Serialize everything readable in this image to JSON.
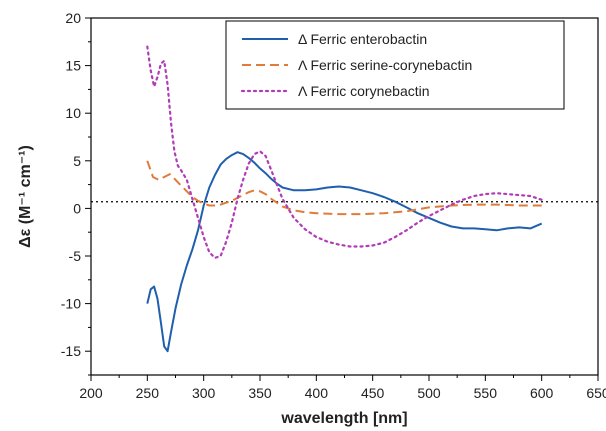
{
  "chart_data": {
    "type": "line",
    "title": "",
    "xlabel": "wavelength [nm]",
    "ylabel": "Δε (M⁻¹ cm⁻¹)",
    "xlim": [
      200,
      650
    ],
    "ylim": [
      -17.5,
      20
    ],
    "xticks": [
      200,
      250,
      300,
      350,
      400,
      450,
      500,
      550,
      600,
      650
    ],
    "yticks": [
      -15,
      -10,
      -5,
      0,
      5,
      10,
      15,
      20
    ],
    "reference_line": 0.7,
    "legend_position": "top-right",
    "grid": false,
    "series": [
      {
        "name": "Δ Ferric enterobactin",
        "color": "#1f5fad",
        "style": "solid",
        "x": [
          250,
          253,
          256,
          259,
          262,
          265,
          268,
          271,
          275,
          280,
          285,
          290,
          295,
          300,
          305,
          310,
          315,
          320,
          325,
          330,
          335,
          340,
          345,
          350,
          355,
          360,
          365,
          370,
          380,
          390,
          400,
          410,
          420,
          430,
          440,
          450,
          460,
          470,
          480,
          490,
          500,
          510,
          520,
          530,
          540,
          550,
          560,
          570,
          580,
          590,
          600
        ],
        "y": [
          -10.0,
          -8.5,
          -8.2,
          -9.5,
          -12.0,
          -14.5,
          -15.0,
          -13.0,
          -10.5,
          -8.0,
          -6.0,
          -4.3,
          -2.3,
          0.3,
          2.2,
          3.5,
          4.6,
          5.2,
          5.6,
          5.9,
          5.7,
          5.3,
          4.8,
          4.2,
          3.7,
          3.1,
          2.6,
          2.2,
          1.9,
          1.9,
          2.0,
          2.2,
          2.3,
          2.2,
          1.9,
          1.6,
          1.2,
          0.7,
          0.1,
          -0.5,
          -1.0,
          -1.5,
          -1.9,
          -2.1,
          -2.1,
          -2.2,
          -2.3,
          -2.1,
          -2.0,
          -2.1,
          -1.6
        ]
      },
      {
        "name": "Λ Ferric serine-corynebactin",
        "color": "#e07b39",
        "style": "dashed",
        "x": [
          250,
          255,
          260,
          265,
          270,
          275,
          280,
          285,
          290,
          295,
          300,
          305,
          310,
          315,
          320,
          325,
          330,
          335,
          340,
          345,
          350,
          355,
          360,
          365,
          370,
          380,
          390,
          400,
          420,
          440,
          460,
          480,
          500,
          520,
          540,
          560,
          580,
          600
        ],
        "y": [
          5.0,
          3.3,
          3.0,
          3.3,
          3.6,
          3.0,
          2.4,
          1.8,
          1.2,
          0.8,
          0.5,
          0.3,
          0.3,
          0.4,
          0.6,
          0.8,
          1.1,
          1.4,
          1.7,
          1.9,
          1.8,
          1.5,
          1.0,
          0.6,
          0.2,
          -0.2,
          -0.4,
          -0.5,
          -0.6,
          -0.6,
          -0.5,
          -0.3,
          0.1,
          0.3,
          0.4,
          0.4,
          0.3,
          0.3
        ]
      },
      {
        "name": "Λ Ferric corynebactin",
        "color": "#b23cb8",
        "style": "dotted",
        "x": [
          250,
          253,
          256,
          259,
          262,
          265,
          268,
          271,
          274,
          277,
          280,
          285,
          290,
          295,
          300,
          305,
          310,
          315,
          320,
          325,
          330,
          335,
          340,
          345,
          350,
          355,
          360,
          365,
          370,
          380,
          390,
          400,
          410,
          420,
          430,
          440,
          450,
          460,
          470,
          480,
          490,
          500,
          510,
          520,
          530,
          540,
          550,
          560,
          570,
          580,
          590,
          600
        ],
        "y": [
          17.0,
          14.5,
          12.8,
          13.8,
          15.2,
          15.5,
          13.0,
          9.0,
          6.0,
          4.5,
          4.0,
          3.0,
          1.0,
          -1.0,
          -3.0,
          -4.6,
          -5.2,
          -5.0,
          -3.5,
          -1.5,
          1.0,
          3.0,
          4.7,
          5.7,
          6.0,
          5.5,
          4.0,
          2.5,
          1.0,
          -1.0,
          -2.2,
          -3.0,
          -3.5,
          -3.8,
          -4.0,
          -4.0,
          -3.9,
          -3.6,
          -3.0,
          -2.3,
          -1.5,
          -0.8,
          -0.2,
          0.4,
          0.9,
          1.3,
          1.5,
          1.6,
          1.5,
          1.4,
          1.3,
          0.9
        ]
      }
    ]
  }
}
